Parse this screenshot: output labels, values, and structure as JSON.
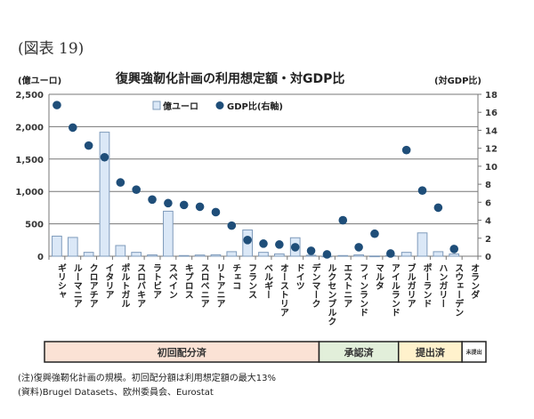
{
  "figure_label": "(図表 19)",
  "chart_data": {
    "type": "bar+scatter",
    "title": "復興強靭化計画の利用想定額・対GDP比",
    "ylabel": "(億ユーロ)",
    "ylabel_right": "(対GDP比)",
    "ylim": [
      0,
      2500
    ],
    "ylim_right": [
      0,
      18
    ],
    "yticks": [
      "0",
      "500",
      "1,000",
      "1,500",
      "2,000",
      "2,500"
    ],
    "yticks_right": [
      "0",
      "2",
      "4",
      "6",
      "8",
      "10",
      "12",
      "14",
      "16",
      "18"
    ],
    "grid": true,
    "legend_position": "top-left",
    "categories": [
      "ギリシャ",
      "ルーマニア",
      "クロアチア",
      "イタリア",
      "ポルトガル",
      "スロバキア",
      "ラトビア",
      "スペイン",
      "キプロス",
      "スロベニア",
      "リトアニア",
      "チェコ",
      "フランス",
      "ベルギー",
      "オーストリア",
      "ドイツ",
      "デンマーク",
      "ルクセンブルク",
      "エストニア",
      "フィンランド",
      "マルタ",
      "アイルランド",
      "ブルガリア",
      "ポーランド",
      "ハンガリー",
      "スウェーデン",
      "オランダ"
    ],
    "series": [
      {
        "name": "億ユーロ",
        "type": "bar",
        "axis": "left",
        "color": "#dbe8f7",
        "values": [
          310,
          290,
          60,
          1915,
          165,
          60,
          20,
          695,
          10,
          18,
          22,
          70,
          405,
          60,
          35,
          285,
          15,
          1,
          10,
          20,
          3,
          10,
          60,
          360,
          70,
          35,
          null
        ]
      },
      {
        "name": "GDP比(右軸)",
        "type": "scatter",
        "axis": "right",
        "color": "#1f4e79",
        "values": [
          16.8,
          14.3,
          12.3,
          11.0,
          8.2,
          7.4,
          6.3,
          5.9,
          5.7,
          5.5,
          4.9,
          3.4,
          1.8,
          1.4,
          1.3,
          1.0,
          0.6,
          0.2,
          4.0,
          1.0,
          2.5,
          0.3,
          11.8,
          7.3,
          5.4,
          0.8,
          null
        ]
      }
    ],
    "status_groups": [
      {
        "label": "初回配分済",
        "count": 17,
        "color": "#fbe2d5"
      },
      {
        "label": "承認済",
        "count": 5,
        "color": "#e2efda"
      },
      {
        "label": "提出済",
        "count": 4,
        "color": "#fff2cc"
      },
      {
        "label": "未提出",
        "count": 1,
        "color": "#ffffff"
      }
    ]
  },
  "note": "(注)復興強靭化計画の規模。初回配分額は利用想定額の最大13%",
  "source": "(資料)Brugel Datasets、欧州委員会、Eurostat"
}
